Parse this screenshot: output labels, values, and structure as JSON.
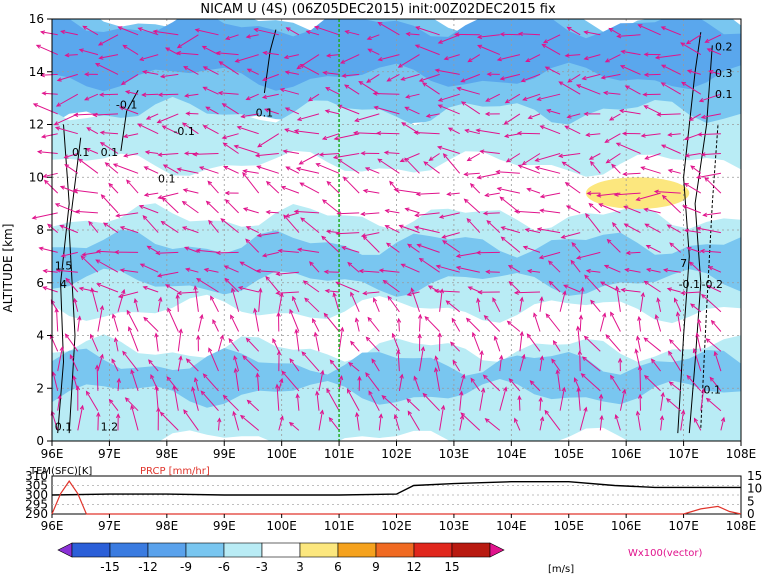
{
  "chart_data": [
    {
      "type": "heatmap",
      "title": "NICAM U (4S) (06Z05DEC2015) init:00Z02DEC2015 fix",
      "xlabel": "",
      "ylabel": "ALTITUDE [km]",
      "xlim": [
        96,
        108
      ],
      "ylim": [
        0,
        16
      ],
      "x_ticks": [
        "96E",
        "97E",
        "98E",
        "99E",
        "100E",
        "101E",
        "102E",
        "103E",
        "104E",
        "105E",
        "106E",
        "107E",
        "108E"
      ],
      "y_ticks": [
        "0",
        "2",
        "4",
        "6",
        "8",
        "10",
        "12",
        "14",
        "16"
      ],
      "grid": true,
      "reference_line_lon": 101,
      "colors": {
        "shade_pos_3_6": "#fce77e",
        "shade_neg_3": "#b9ecf5",
        "shade_neg_6": "#79c6f0",
        "shade_neg_9": "#5aa7ed",
        "shade_neg_12": "#3f7fe5",
        "vector": "#e0138c",
        "contour": "#000000",
        "ref_line": "#22aa22"
      },
      "contour_labels": [
        "0.1",
        "0.1",
        "0.1",
        "-0.1",
        "-0.1",
        "0.1",
        "0.2",
        "0.3",
        "0.1",
        "-0.1",
        "-0.2",
        "0.1",
        "0.1",
        "1.2",
        "1.5",
        "4",
        "7"
      ],
      "bands": [
        {
          "y0": 12.0,
          "y1": 16.0,
          "level": -6
        },
        {
          "y0": 13.8,
          "y1": 15.8,
          "level": -9
        },
        {
          "y0": 10.5,
          "y1": 12.5,
          "level": -3
        },
        {
          "y0": 5.0,
          "y1": 8.5,
          "level": -3
        },
        {
          "y0": 6.0,
          "y1": 7.5,
          "level": -6
        },
        {
          "y0": 0.0,
          "y1": 3.5,
          "level": -3
        },
        {
          "y0": 1.8,
          "y1": 3.0,
          "level": -6
        }
      ],
      "positive_patch": {
        "x0": 105.3,
        "x1": 107.1,
        "y0": 8.8,
        "y1": 10.0,
        "level": 3
      }
    },
    {
      "type": "line",
      "title": "",
      "series": [
        {
          "name": "TEM(SFC)[K]",
          "color": "#000000",
          "x": [
            96,
            97,
            98,
            99,
            100,
            101,
            102,
            102.3,
            103,
            104,
            105,
            105.8,
            106.5,
            107,
            108
          ],
          "values": [
            300,
            300.5,
            300.5,
            300,
            300,
            300,
            300.5,
            305,
            306,
            307,
            307,
            305,
            304,
            304,
            304
          ]
        },
        {
          "name": "PRCP [mm/hr]",
          "color": "#e0352c",
          "x": [
            96,
            96.15,
            96.3,
            96.45,
            96.6,
            96.8,
            97,
            100,
            104,
            106,
            107,
            107.3,
            107.6,
            107.8,
            108
          ],
          "values": [
            0,
            8,
            13,
            8,
            0,
            0,
            0,
            0,
            0,
            0,
            0,
            2,
            3,
            1,
            0
          ]
        }
      ],
      "left_axis": {
        "ticks": [
          "290",
          "295",
          "300",
          "305",
          "310"
        ]
      },
      "right_axis": {
        "ticks": [
          "0",
          "5",
          "10",
          "15"
        ]
      },
      "x_ticks": [
        "96E",
        "97E",
        "98E",
        "99E",
        "100E",
        "101E",
        "102E",
        "103E",
        "104E",
        "105E",
        "106E",
        "107E",
        "108E"
      ]
    }
  ],
  "colorbar": {
    "labels": [
      "-15",
      "-12",
      "-9",
      "-6",
      "-3",
      "3",
      "6",
      "9",
      "12",
      "15"
    ],
    "colors": [
      "#8b31d6",
      "#2b5fd8",
      "#3a7be0",
      "#5aa2ec",
      "#79c6f0",
      "#b9ecf5",
      "#ffffff",
      "#fce77e",
      "#f5a21e",
      "#f06a22",
      "#e0271d",
      "#b81a10",
      "#e0138c"
    ],
    "unit": "[m/s]"
  },
  "vector_label": "Wx100(vector)"
}
